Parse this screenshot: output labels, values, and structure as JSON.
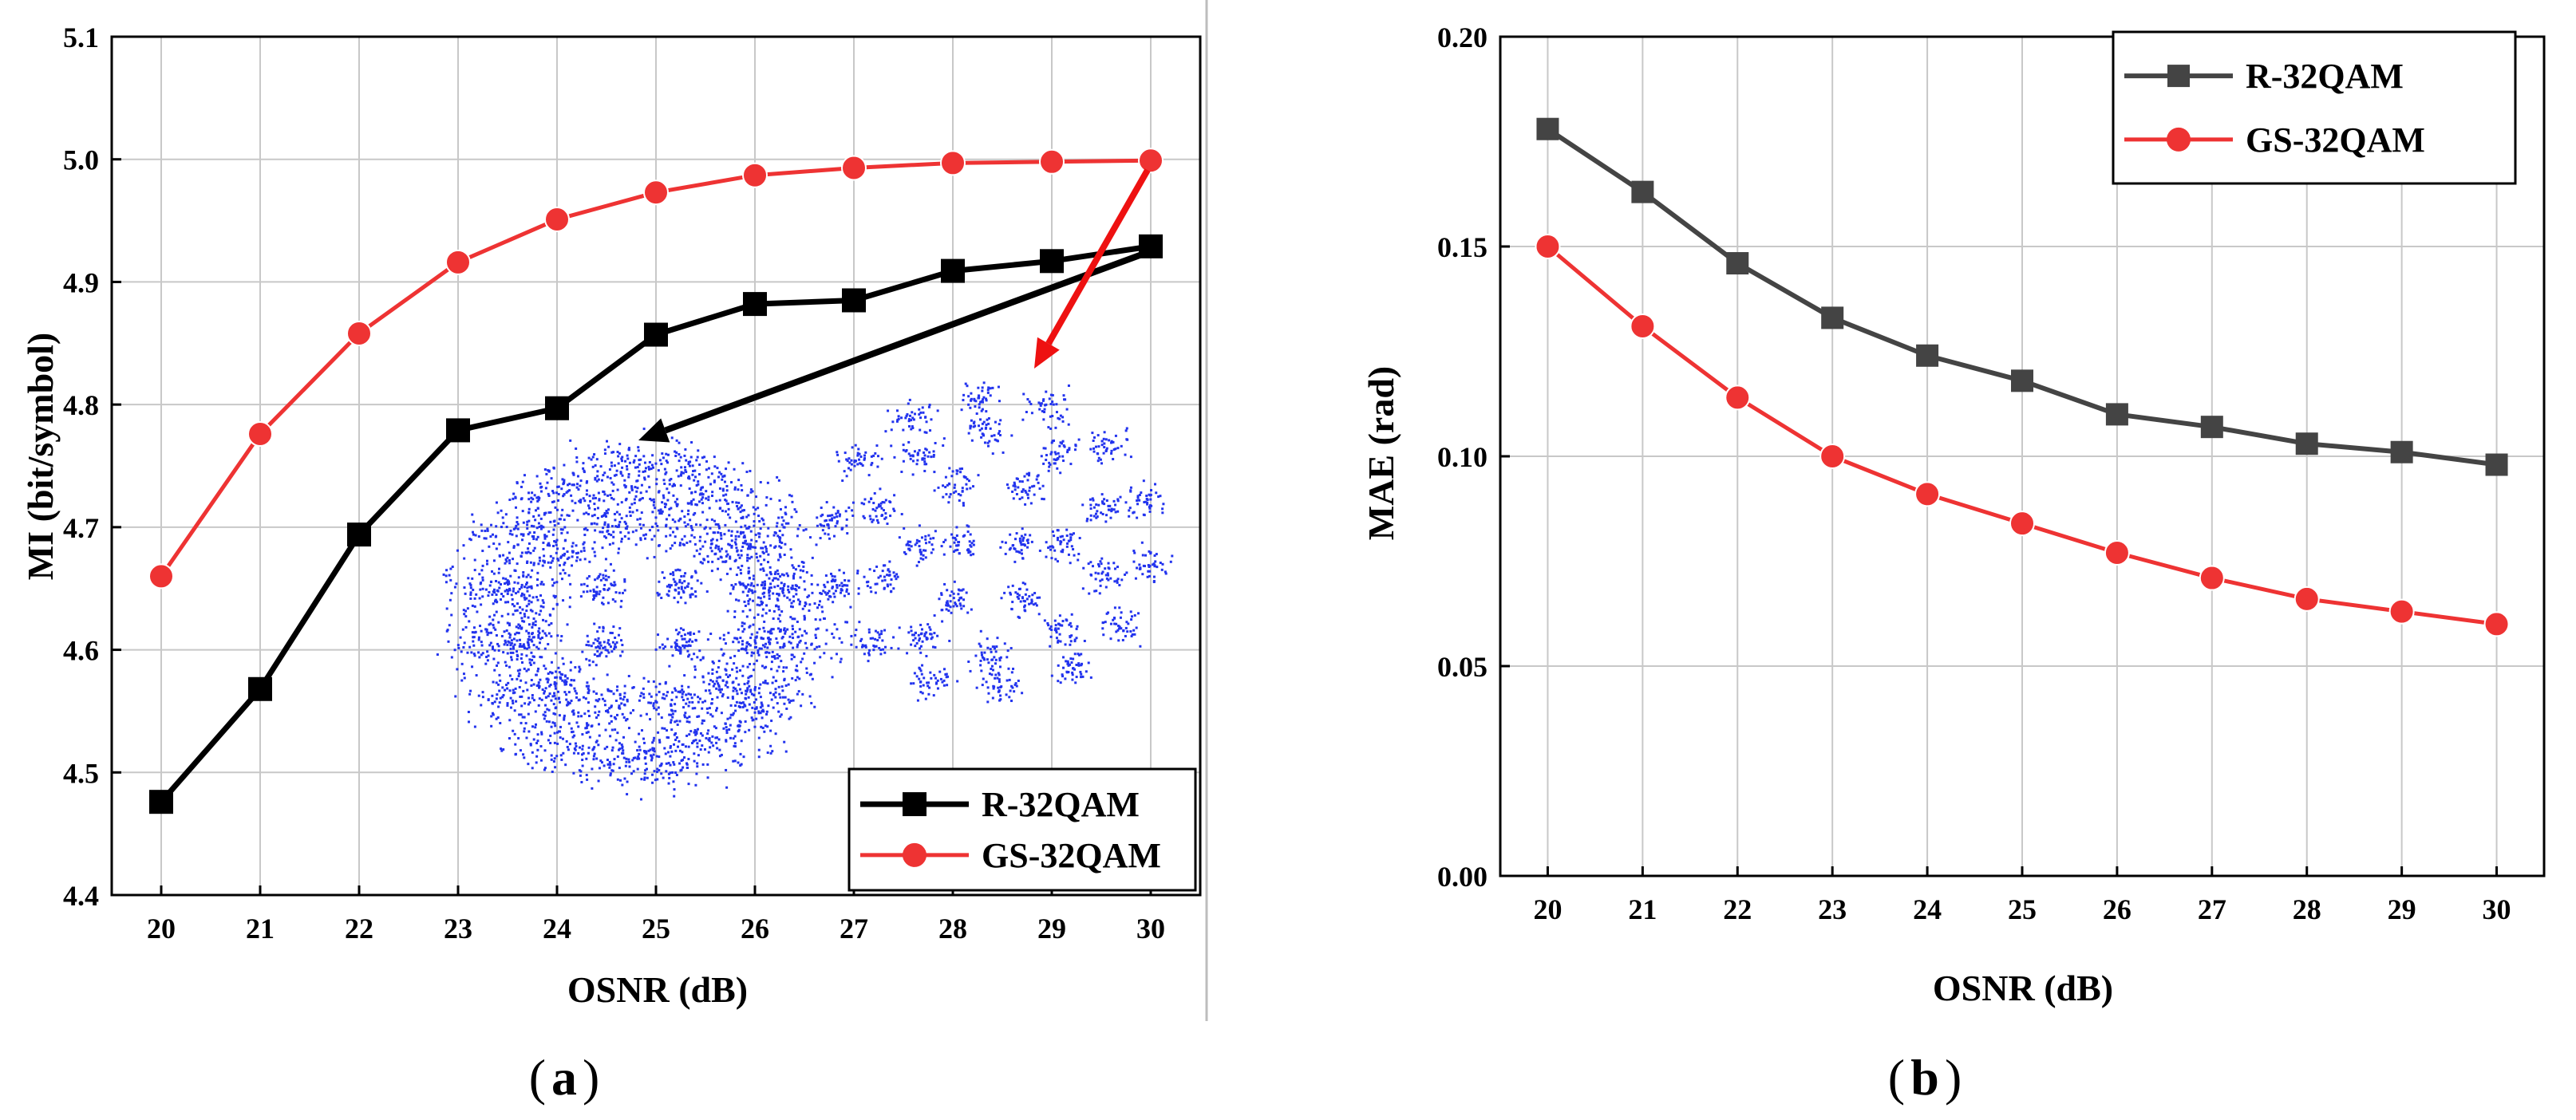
{
  "colors": {
    "r_series_a": "#000000",
    "gs_series": "#ee3333",
    "r_series_b": "#444444",
    "grid": "#c8c8c8",
    "constellation": "#2233ee",
    "arrow_black": "#000000",
    "arrow_red": "#ee1111"
  },
  "captions": {
    "a": "a",
    "b": "b"
  },
  "chart_data": [
    {
      "panel": "a",
      "type": "line",
      "title": "",
      "xlabel": "OSNR (dB)",
      "ylabel": "MI (bit/symbol)",
      "xlim": [
        19.5,
        30.5
      ],
      "ylim": [
        4.4,
        5.1
      ],
      "grid": true,
      "x": [
        20,
        21,
        22,
        23,
        24,
        25,
        26,
        27,
        28,
        29,
        30
      ],
      "x_ticks": [
        "20",
        "21",
        "22",
        "23",
        "24",
        "25",
        "26",
        "27",
        "28",
        "29",
        "30"
      ],
      "y_ticks": [
        "4.4",
        "4.5",
        "4.6",
        "4.7",
        "4.8",
        "4.9",
        "5.0",
        "5.1"
      ],
      "legend_position": "bottom-right",
      "series": [
        {
          "name": "R-32QAM",
          "marker": "square",
          "values": [
            4.476,
            4.568,
            4.694,
            4.779,
            4.797,
            4.857,
            4.882,
            4.885,
            4.909,
            4.917,
            4.929
          ]
        },
        {
          "name": "GS-32QAM",
          "marker": "circle",
          "values": [
            4.66,
            4.776,
            4.858,
            4.916,
            4.951,
            4.973,
            4.987,
            4.993,
            4.997,
            4.998,
            4.999
          ]
        }
      ],
      "annotations": [
        "inset: R-32QAM received constellation (black arrow from x=30)",
        "inset: GS-32QAM received constellation (red arrow from x=30)"
      ]
    },
    {
      "panel": "b",
      "type": "line",
      "title": "",
      "xlabel": "OSNR (dB)",
      "ylabel": "MAE (rad)",
      "xlim": [
        19.5,
        30.5
      ],
      "ylim": [
        0.0,
        0.2
      ],
      "grid": true,
      "x": [
        20,
        21,
        22,
        23,
        24,
        25,
        26,
        27,
        28,
        29,
        30
      ],
      "x_ticks": [
        "20",
        "21",
        "22",
        "23",
        "24",
        "25",
        "26",
        "27",
        "28",
        "29",
        "30"
      ],
      "y_ticks": [
        "0.00",
        "0.05",
        "0.10",
        "0.15",
        "0.20"
      ],
      "legend_position": "top-right",
      "series": [
        {
          "name": "R-32QAM",
          "marker": "square",
          "values": [
            0.178,
            0.163,
            0.146,
            0.133,
            0.124,
            0.118,
            0.11,
            0.107,
            0.103,
            0.101,
            0.098
          ]
        },
        {
          "name": "GS-32QAM",
          "marker": "circle",
          "values": [
            0.15,
            0.131,
            0.114,
            0.1,
            0.091,
            0.084,
            0.077,
            0.071,
            0.066,
            0.063,
            0.06
          ]
        }
      ]
    }
  ]
}
